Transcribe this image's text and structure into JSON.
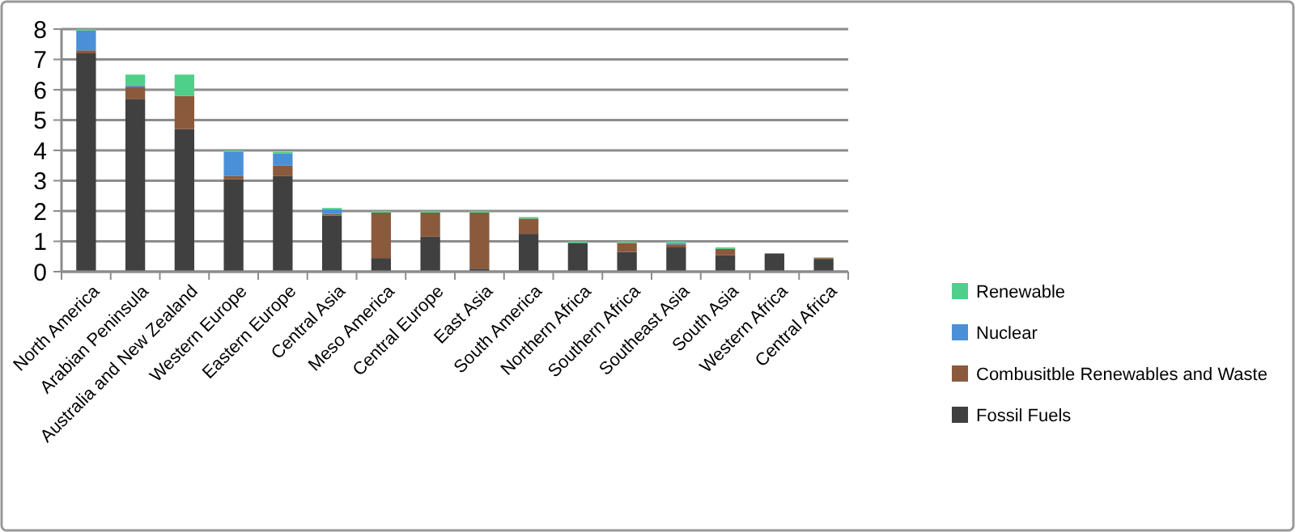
{
  "chart_data": {
    "type": "bar",
    "stacked": true,
    "categories": [
      "North America",
      "Arabian Peninsula",
      "Australia and New Zealand",
      "Western Europe",
      "Eastern Europe",
      "Central Asia",
      "Meso America",
      "Central Europe",
      "East Asia",
      "South America",
      "Northern Africa",
      "Southern Africa",
      "Southeast Asia",
      "South Asia",
      "Western Africa",
      "Central Africa"
    ],
    "series": [
      {
        "name": "Fossil Fuels",
        "color": "#404040",
        "values": [
          7.2,
          5.7,
          4.7,
          3.05,
          3.15,
          1.85,
          0.45,
          1.15,
          0.1,
          1.25,
          0.95,
          0.65,
          0.8,
          0.55,
          0.6,
          0.4
        ]
      },
      {
        "name": "Combusitble Renewables and Waste",
        "color": "#8b5a3c",
        "values": [
          0.1,
          0.4,
          1.1,
          0.1,
          0.35,
          0.05,
          1.5,
          0.8,
          1.85,
          0.5,
          null,
          0.3,
          0.1,
          0.2,
          null,
          0.05
        ]
      },
      {
        "name": "Nuclear",
        "color": "#4a90d9",
        "values": [
          0.65,
          0.05,
          null,
          0.8,
          0.4,
          0.15,
          null,
          null,
          null,
          null,
          null,
          null,
          0.05,
          null,
          null,
          null
        ]
      },
      {
        "name": "Renewable",
        "color": "#4fd08a",
        "values": [
          0.05,
          0.35,
          0.7,
          0.05,
          0.05,
          0.05,
          0.05,
          0.05,
          0.05,
          0.05,
          0.05,
          0.05,
          0.05,
          0.05,
          0,
          0.02
        ]
      }
    ],
    "ylim": [
      0,
      8
    ],
    "yticks": [
      0,
      1,
      2,
      3,
      4,
      5,
      6,
      7,
      8
    ],
    "grid": "y",
    "legend": "right"
  }
}
